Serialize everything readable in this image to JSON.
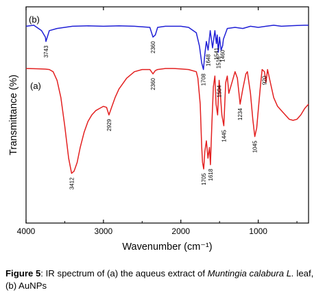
{
  "chart_data": {
    "type": "line",
    "title": "",
    "xlabel": "Wavenumber (cm⁻¹)",
    "ylabel": "Transmittance (%)",
    "xlim": [
      4000,
      350
    ],
    "x_ticks": [
      4000,
      3000,
      2000,
      1000
    ],
    "x_tick_labels": [
      "4000",
      "3000",
      "2000",
      "1000"
    ],
    "y_ticks_labeled": false,
    "grid": false,
    "legend": "none",
    "series": [
      {
        "name": "(b)",
        "color": "#1f1fd6",
        "x": [
          4000,
          3900,
          3800,
          3750,
          3743,
          3700,
          3600,
          3500,
          3400,
          3200,
          3000,
          2800,
          2600,
          2400,
          2360,
          2330,
          2300,
          2200,
          2000,
          1900,
          1800,
          1760,
          1730,
          1708,
          1690,
          1670,
          1648,
          1620,
          1590,
          1560,
          1541,
          1530,
          1516,
          1500,
          1480,
          1460,
          1450,
          1400,
          1300,
          1200,
          1100,
          1000,
          900,
          800,
          700,
          600,
          500,
          400,
          350
        ],
        "y": [
          91,
          91.5,
          89,
          86,
          84,
          89,
          90,
          90.5,
          91,
          91.2,
          91,
          91.2,
          91,
          90.5,
          86,
          87,
          90.5,
          91,
          91,
          90.5,
          88,
          82,
          74,
          71,
          78,
          84,
          80,
          89,
          81,
          89,
          83,
          87,
          79,
          86,
          80,
          82,
          85,
          90,
          90.5,
          90,
          91,
          90.5,
          91,
          91.5,
          91,
          91.2,
          91.4,
          91.5,
          91.5
        ]
      },
      {
        "name": "(a)",
        "color": "#e31f1f",
        "x": [
          4000,
          3900,
          3800,
          3750,
          3700,
          3650,
          3600,
          3550,
          3500,
          3450,
          3412,
          3380,
          3340,
          3300,
          3250,
          3200,
          3150,
          3100,
          3050,
          3000,
          2960,
          2929,
          2900,
          2850,
          2800,
          2700,
          2600,
          2500,
          2400,
          2360,
          2330,
          2300,
          2200,
          2100,
          2000,
          1900,
          1800,
          1780,
          1750,
          1730,
          1720,
          1705,
          1690,
          1670,
          1650,
          1630,
          1618,
          1600,
          1580,
          1560,
          1545,
          1525,
          1505,
          1490,
          1470,
          1445,
          1420,
          1400,
          1380,
          1340,
          1300,
          1270,
          1234,
          1200,
          1160,
          1140,
          1100,
          1070,
          1045,
          1020,
          1000,
          970,
          950,
          920,
          900,
          880,
          850,
          800,
          750,
          700,
          650,
          600,
          550,
          500,
          450,
          400,
          350
        ],
        "y": [
          71.5,
          71.4,
          71.3,
          71.2,
          71,
          70,
          66,
          58,
          45,
          30,
          23,
          24,
          28,
          35,
          42,
          47,
          50,
          52,
          53,
          54,
          53.5,
          50,
          53,
          58,
          62,
          67,
          70,
          71,
          71,
          69,
          70.5,
          71,
          71.5,
          71.5,
          71.3,
          71,
          70,
          67,
          55,
          35,
          28,
          25,
          33,
          38,
          30,
          35,
          27,
          45,
          63,
          68,
          55,
          50,
          66,
          60,
          50,
          45,
          65,
          68,
          60,
          65,
          70,
          67,
          55,
          62,
          69,
          70,
          60,
          48,
          40,
          44,
          52,
          64,
          71,
          70,
          65,
          71,
          66,
          58,
          54,
          52,
          50,
          48,
          47.5,
          48,
          50,
          53,
          55
        ]
      }
    ],
    "annotations": [
      {
        "series": "(b)",
        "x": 3743,
        "text": "3743"
      },
      {
        "series": "(b)",
        "x": 2360,
        "text": "2360"
      },
      {
        "series": "(b)",
        "x": 1708,
        "text": "1708"
      },
      {
        "series": "(b)",
        "x": 1648,
        "text": "1648"
      },
      {
        "series": "(b)",
        "x": 1541,
        "text": "1541"
      },
      {
        "series": "(b)",
        "x": 1516,
        "text": "1516"
      },
      {
        "series": "(b)",
        "x": 1460,
        "text": "1460"
      },
      {
        "series": "(a)",
        "x": 2360,
        "text": "2360"
      },
      {
        "series": "(a)",
        "x": 3412,
        "text": "3412"
      },
      {
        "series": "(a)",
        "x": 2929,
        "text": "2929"
      },
      {
        "series": "(a)",
        "x": 1705,
        "text": "1705"
      },
      {
        "series": "(a)",
        "x": 1618,
        "text": "1618"
      },
      {
        "series": "(a)",
        "x": 1504,
        "text": "1504"
      },
      {
        "series": "(a)",
        "x": 1445,
        "text": "1445"
      },
      {
        "series": "(a)",
        "x": 1234,
        "text": "1234"
      },
      {
        "series": "(a)",
        "x": 1045,
        "text": "1045"
      },
      {
        "series": "(a)",
        "x": 920,
        "text": "920"
      }
    ]
  },
  "caption": {
    "figure_label": "Figure 5",
    "text_part1": ": IR spectrum of (a) the aqueus extract of ",
    "species": "Muntingia calabura L.",
    "text_part2": " leaf, (b) AuNPs"
  }
}
